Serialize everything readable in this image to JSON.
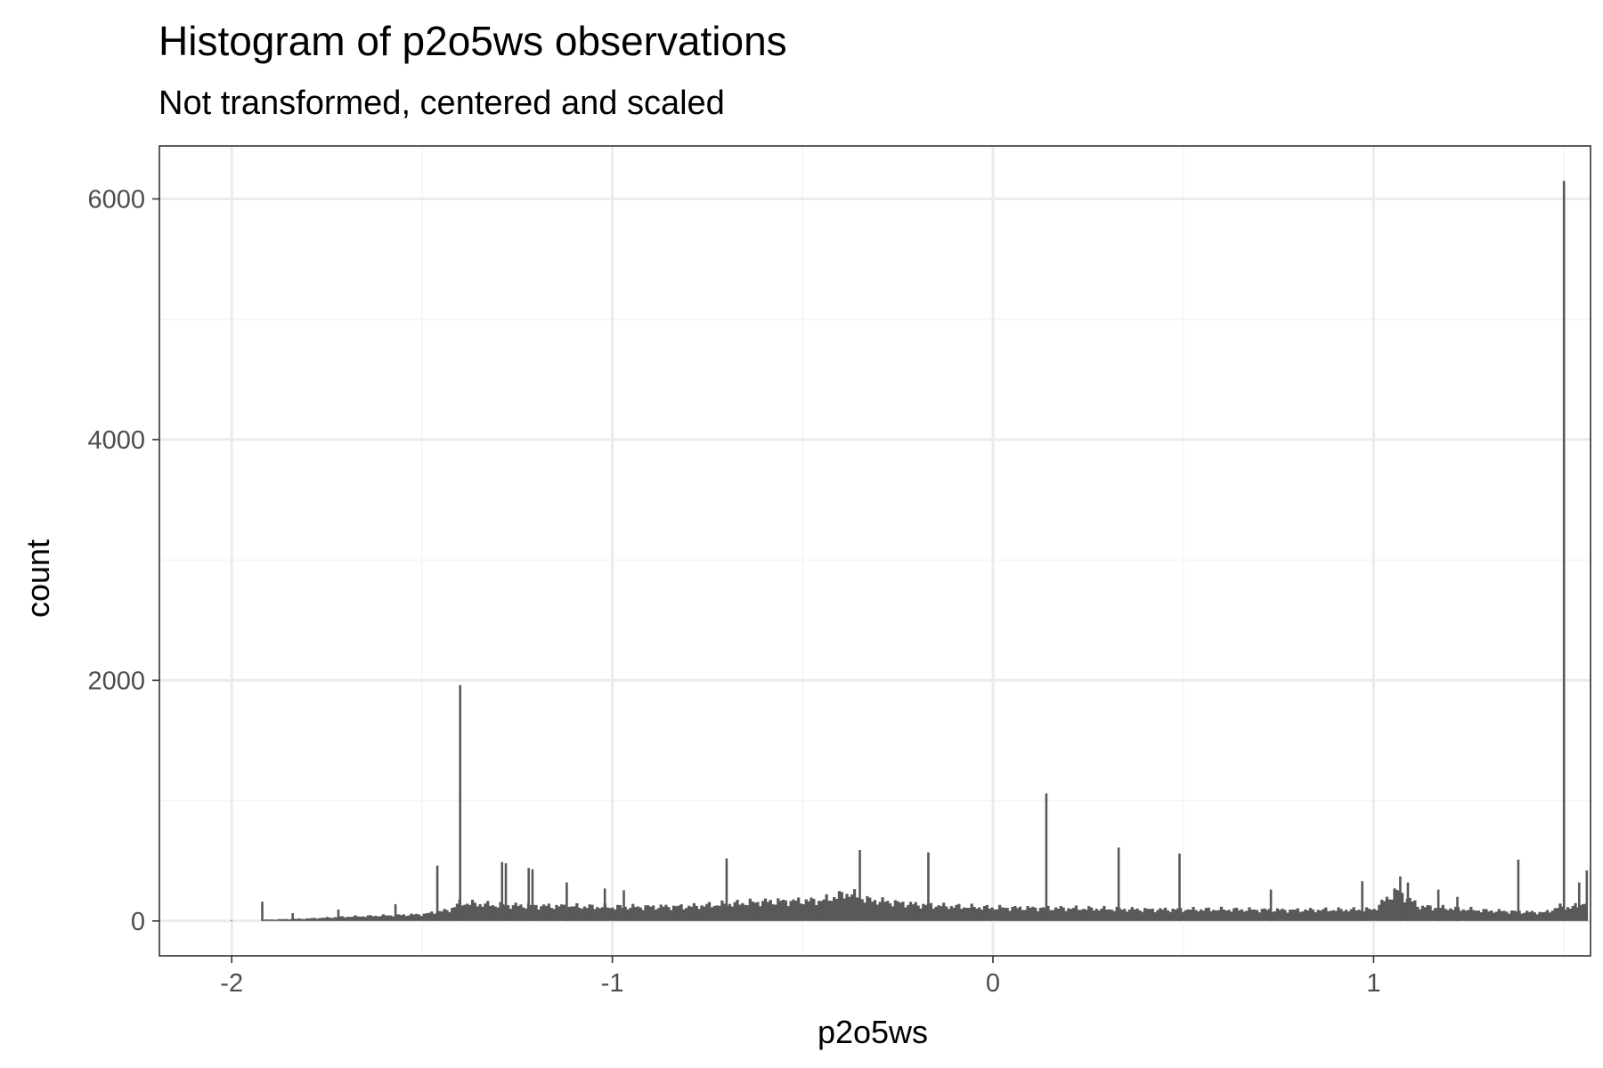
{
  "chart_data": {
    "type": "bar",
    "title": "Histogram of p2o5ws observations",
    "subtitle": "Not transformed, centered and scaled",
    "xlabel": "p2o5ws",
    "ylabel": "count",
    "xlim": [
      -2.19,
      1.57
    ],
    "ylim": [
      -290,
      6440
    ],
    "x_ticks": [
      -2,
      -1,
      0,
      1
    ],
    "x_tick_labels": [
      "-2",
      "-1",
      "0",
      "1"
    ],
    "y_ticks": [
      0,
      2000,
      4000,
      6000
    ],
    "y_tick_labels": [
      "0",
      "2000",
      "4000",
      "6000"
    ],
    "x_minor_ticks": [
      -1.5,
      -0.5,
      0.5,
      1.5
    ],
    "y_minor_ticks": [
      1000,
      3000,
      5000
    ],
    "grid": true,
    "legend": "none",
    "baseline_range": [
      -1.92,
      1.56
    ],
    "baseline_points": [
      [
        -1.92,
        10
      ],
      [
        -1.8,
        20
      ],
      [
        -1.7,
        35
      ],
      [
        -1.6,
        45
      ],
      [
        -1.5,
        55
      ],
      [
        -1.43,
        90
      ],
      [
        -1.4,
        150
      ],
      [
        -1.35,
        140
      ],
      [
        -1.3,
        130
      ],
      [
        -1.2,
        125
      ],
      [
        -1.0,
        115
      ],
      [
        -0.8,
        120
      ],
      [
        -0.6,
        160
      ],
      [
        -0.45,
        170
      ],
      [
        -0.38,
        230
      ],
      [
        -0.33,
        175
      ],
      [
        -0.2,
        135
      ],
      [
        -0.1,
        120
      ],
      [
        0.0,
        110
      ],
      [
        0.2,
        105
      ],
      [
        0.4,
        95
      ],
      [
        0.6,
        95
      ],
      [
        0.8,
        90
      ],
      [
        1.0,
        95
      ],
      [
        1.06,
        250
      ],
      [
        1.12,
        120
      ],
      [
        1.3,
        85
      ],
      [
        1.45,
        70
      ],
      [
        1.49,
        120
      ],
      [
        1.52,
        110
      ],
      [
        1.56,
        160
      ]
    ],
    "spikes": [
      {
        "x": -1.92,
        "y": 160
      },
      {
        "x": -1.84,
        "y": 65
      },
      {
        "x": -1.72,
        "y": 95
      },
      {
        "x": -1.57,
        "y": 140
      },
      {
        "x": -1.46,
        "y": 460
      },
      {
        "x": -1.4,
        "y": 1960
      },
      {
        "x": -1.29,
        "y": 490
      },
      {
        "x": -1.28,
        "y": 480
      },
      {
        "x": -1.22,
        "y": 440
      },
      {
        "x": -1.21,
        "y": 430
      },
      {
        "x": -1.12,
        "y": 320
      },
      {
        "x": -1.02,
        "y": 270
      },
      {
        "x": -0.97,
        "y": 255
      },
      {
        "x": -0.7,
        "y": 520
      },
      {
        "x": -0.35,
        "y": 590
      },
      {
        "x": -0.17,
        "y": 570
      },
      {
        "x": 0.14,
        "y": 1060
      },
      {
        "x": 0.33,
        "y": 610
      },
      {
        "x": 0.49,
        "y": 560
      },
      {
        "x": 0.73,
        "y": 260
      },
      {
        "x": 0.97,
        "y": 330
      },
      {
        "x": 1.07,
        "y": 370
      },
      {
        "x": 1.09,
        "y": 320
      },
      {
        "x": 1.17,
        "y": 260
      },
      {
        "x": 1.22,
        "y": 200
      },
      {
        "x": 1.38,
        "y": 510
      },
      {
        "x": 1.5,
        "y": 6150
      },
      {
        "x": 1.54,
        "y": 320
      },
      {
        "x": 1.56,
        "y": 420
      }
    ],
    "colors": {
      "bar": "#595959",
      "panel_border": "#333333",
      "grid_major": "#ebebeb",
      "grid_minor": "#f5f5f5",
      "tick": "#333333"
    }
  }
}
